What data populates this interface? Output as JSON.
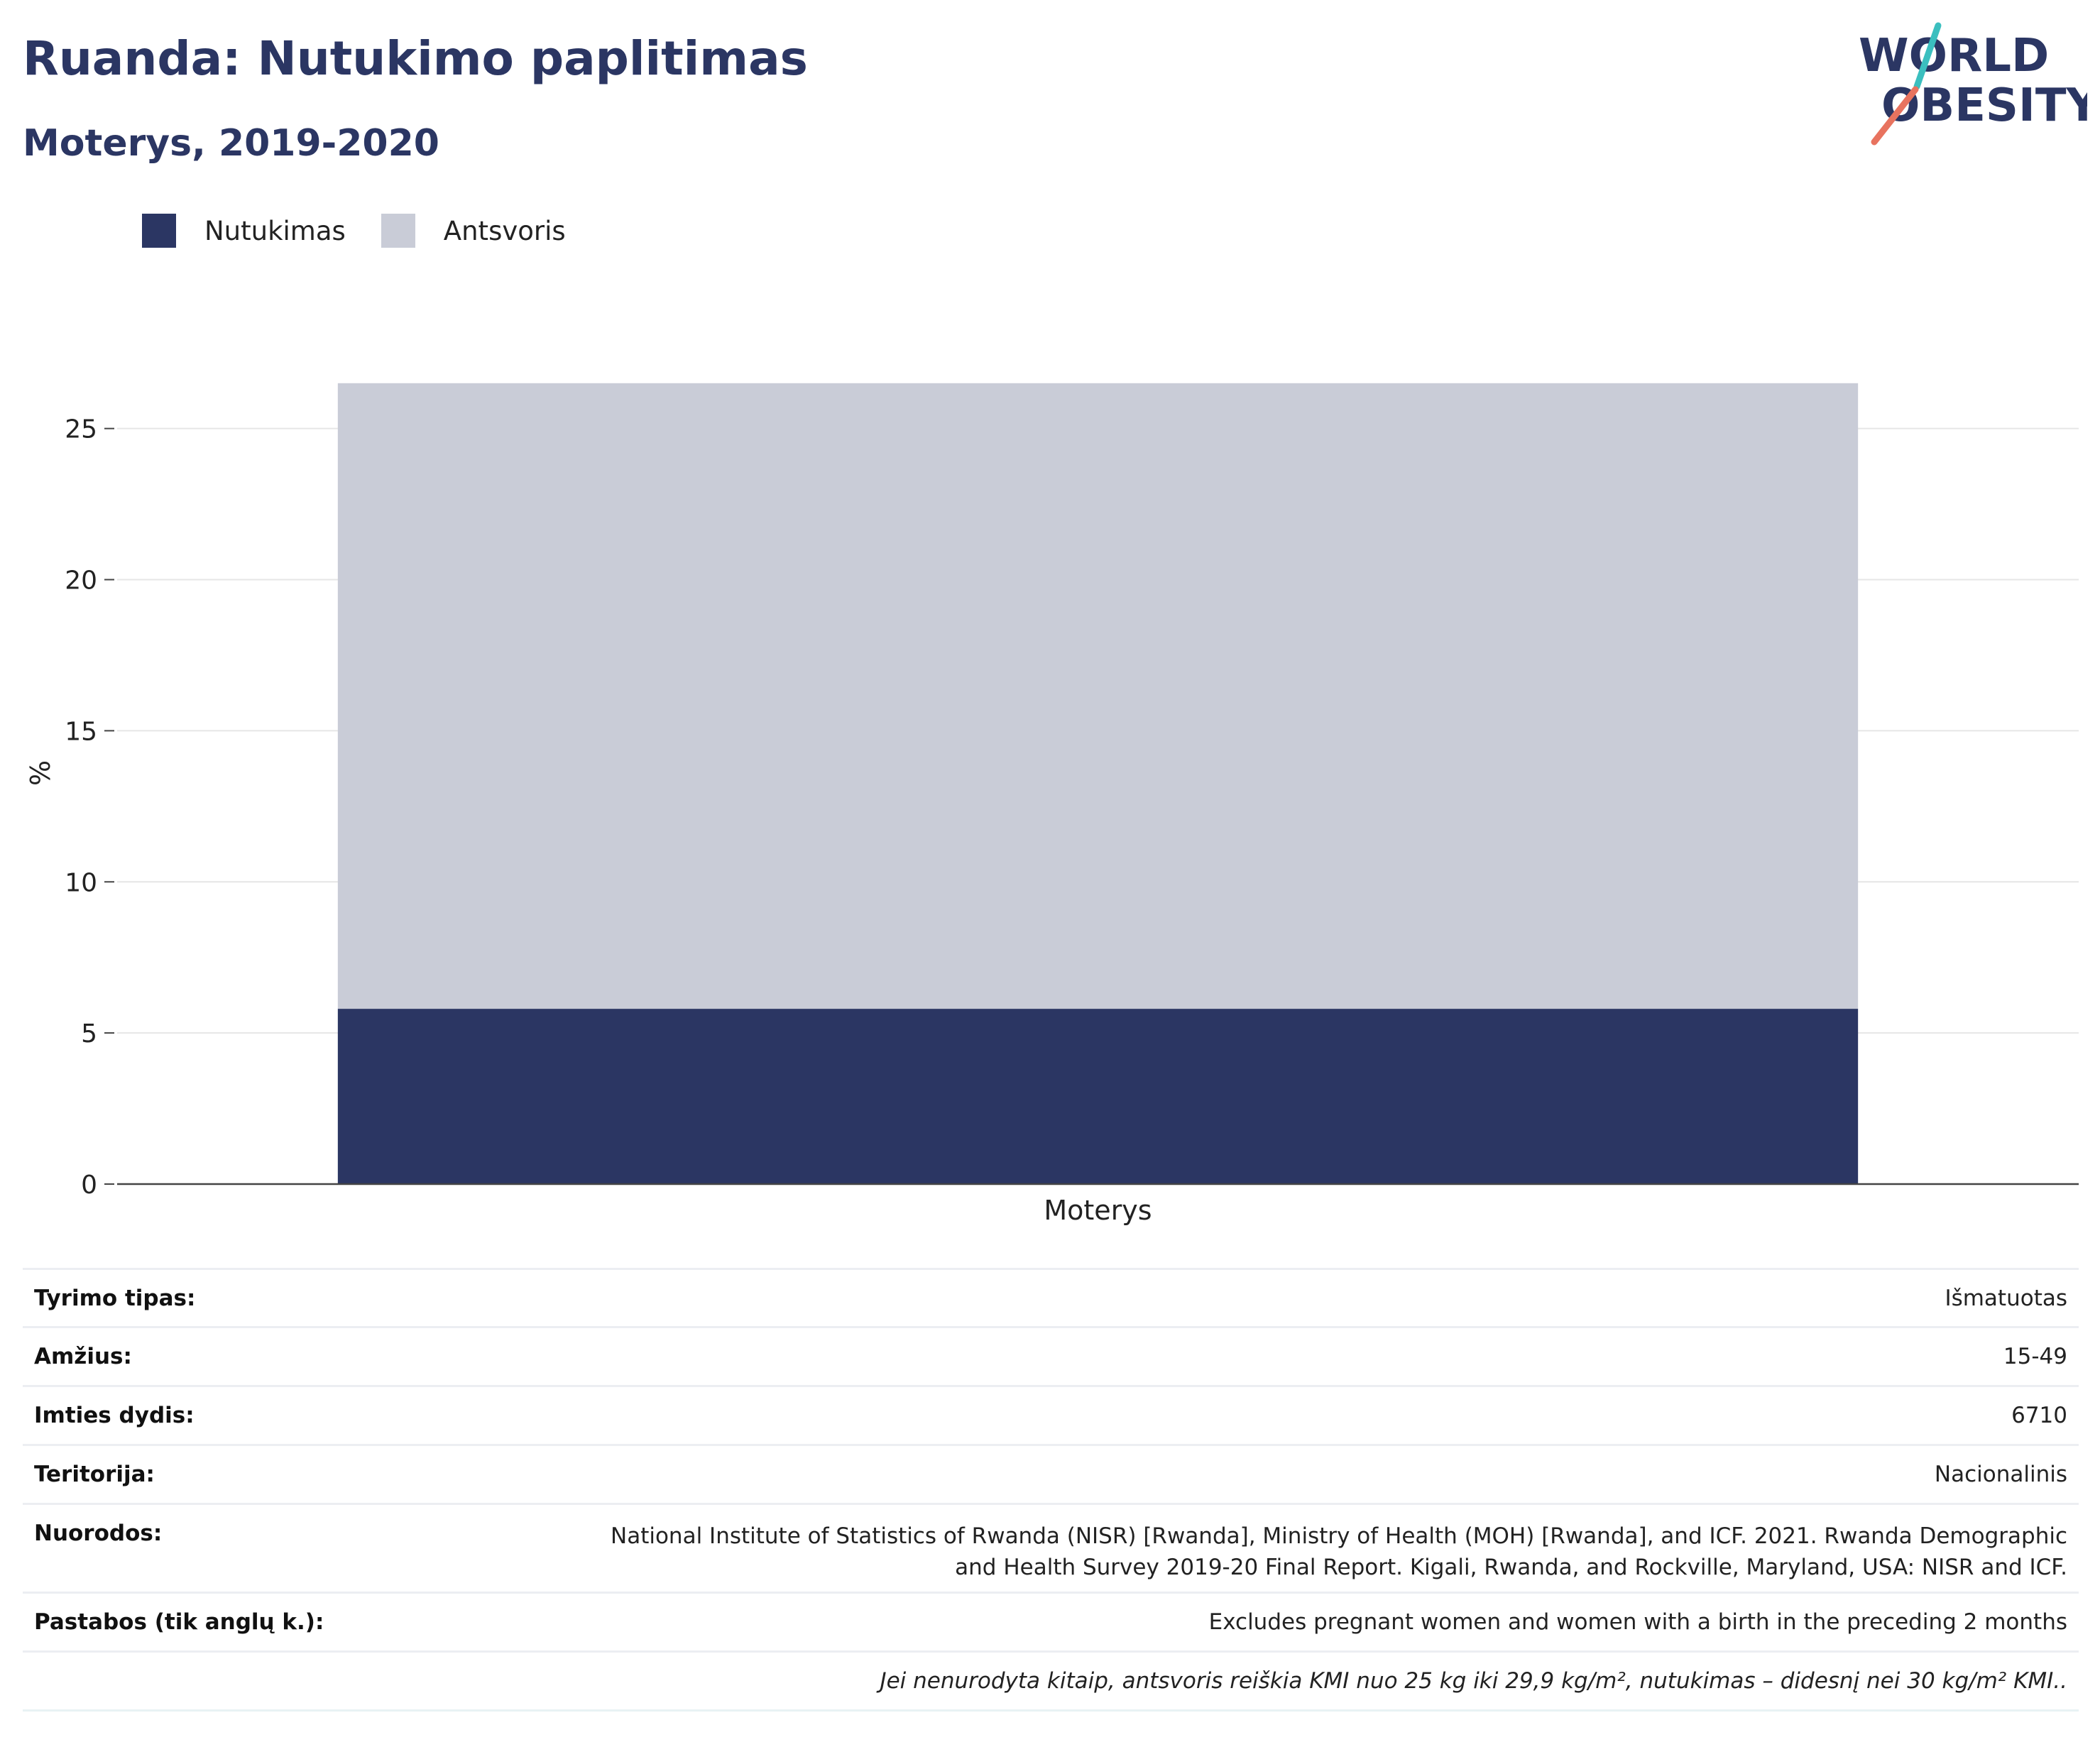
{
  "header": {
    "title": "Ruanda: Nutukimo paplitimas",
    "subtitle": "Moterys, 2019-2020"
  },
  "logo": {
    "line1": "WORLD",
    "line2": "OBESITY"
  },
  "colors": {
    "obesity": "#2b3663",
    "overweight": "#c9ccd7",
    "title": "#2b3663",
    "logo_teal": "#3bbfbf",
    "logo_coral": "#e8735f"
  },
  "legend": [
    {
      "label": "Nutukimas",
      "color": "#2b3663"
    },
    {
      "label": "Antsvoris",
      "color": "#c9ccd7"
    }
  ],
  "chart_data": {
    "type": "bar",
    "stacked": true,
    "categories": [
      "Moterys"
    ],
    "series": [
      {
        "name": "Nutukimas",
        "values": [
          5.8
        ]
      },
      {
        "name": "Antsvoris",
        "values": [
          20.7
        ]
      }
    ],
    "ylabel": "%",
    "xlabel": "",
    "ylim": [
      0,
      27.2
    ],
    "yticks": [
      0,
      5,
      10,
      15,
      20,
      25
    ],
    "grid": true,
    "legend_position": "top-left"
  },
  "info": [
    {
      "key": "Tyrimo tipas:",
      "value": "Išmatuotas"
    },
    {
      "key": "Amžius:",
      "value": "15-49"
    },
    {
      "key": "Imties dydis:",
      "value": "6710"
    },
    {
      "key": "Teritorija:",
      "value": "Nacionalinis"
    },
    {
      "key": "Nuorodos:",
      "value": "National Institute of Statistics of Rwanda (NISR) [Rwanda], Ministry of Health (MOH) [Rwanda], and ICF. 2021. Rwanda Demographic and Health Survey 2019-20 Final Report. Kigali, Rwanda, and Rockville, Maryland, USA: NISR and ICF."
    },
    {
      "key": "Pastabos (tik anglų k.):",
      "value": "Excludes pregnant women and women with a birth in the preceding 2 months"
    }
  ],
  "footnote": "Jei nenurodyta kitaip, antsvoris reiškia KMI nuo 25 kg iki 29,9 kg/m², nutukimas – didesnį nei 30 kg/m² KMI.."
}
